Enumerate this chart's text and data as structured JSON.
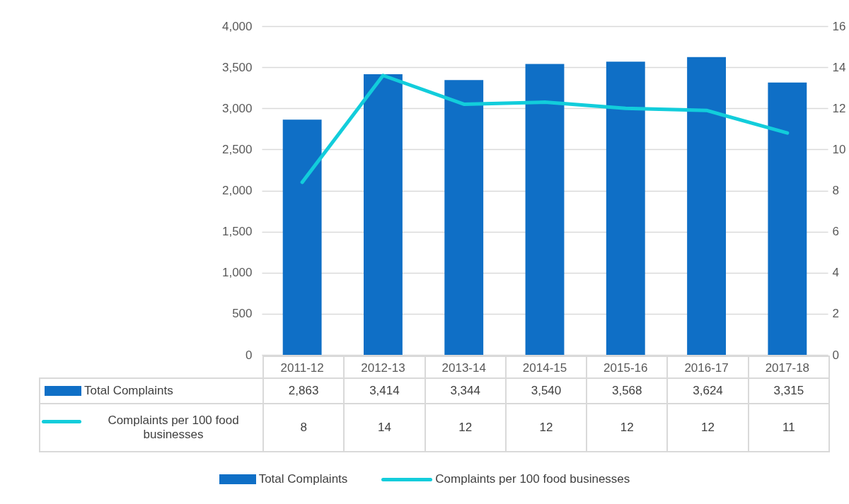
{
  "chart_data": {
    "type": "bar",
    "categories": [
      "2011-12",
      "2012-13",
      "2013-14",
      "2014-15",
      "2015-16",
      "2016-17",
      "2017-18"
    ],
    "series": [
      {
        "name": "Total Complaints",
        "color": "#0f6fc6",
        "values": [
          2863,
          3414,
          3344,
          3540,
          3568,
          3624,
          3315
        ],
        "value_labels": [
          "2,863",
          "3,414",
          "3,344",
          "3,540",
          "3,568",
          "3,624",
          "3,315"
        ]
      },
      {
        "name": "Complaints per 100 food businesses",
        "type": "line",
        "axis": "y2",
        "color": "#12cddb",
        "values": [
          8.4,
          13.6,
          12.2,
          12.3,
          12.0,
          11.9,
          10.8
        ],
        "value_labels": [
          "8",
          "14",
          "12",
          "12",
          "12",
          "12",
          "11"
        ]
      }
    ],
    "ylim": [
      0,
      4000
    ],
    "yticks": [
      0,
      500,
      {
        "value": 1000,
        "label": "1,000"
      },
      {
        "value": 1500,
        "label": "1,500"
      },
      {
        "value": 2000,
        "label": "2,000"
      },
      {
        "value": 2500,
        "label": "2,500"
      },
      {
        "value": 3000,
        "label": "3,000"
      },
      {
        "value": 3500,
        "label": "3,500"
      },
      {
        "value": 4000,
        "label": "4,000"
      }
    ],
    "y2lim": [
      0,
      16
    ],
    "y2ticks": [
      0,
      2,
      4,
      6,
      8,
      10,
      12,
      14,
      16
    ],
    "grid": "y",
    "legend": "bottom",
    "marker": "none",
    "line_style": "solid"
  }
}
